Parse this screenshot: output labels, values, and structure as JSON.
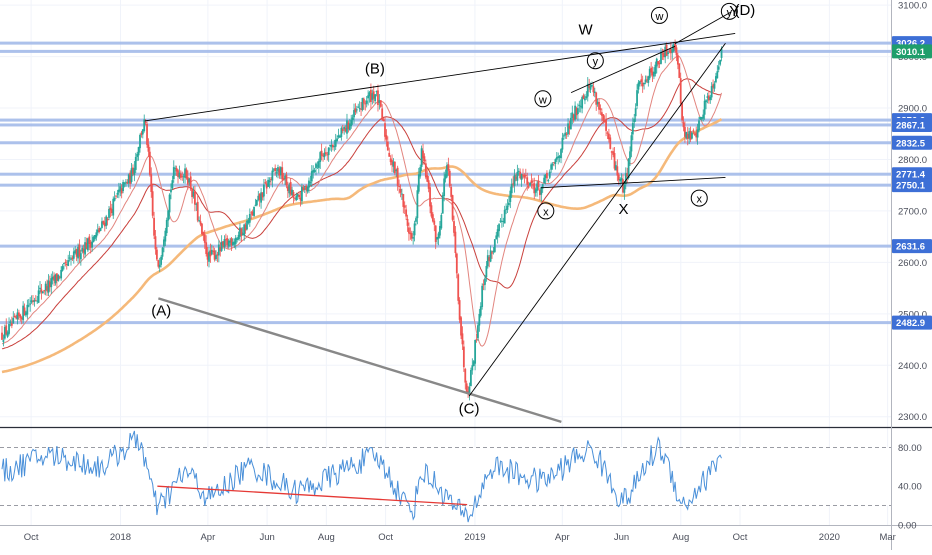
{
  "colors": {
    "up": "#26a69a",
    "down": "#ef5350",
    "level_line": "#9db6e8",
    "label_blue": "#3d6fd6",
    "label_green": "#1f9e6b",
    "ma_short": "#e2857f",
    "ma_mid": "#c9403c",
    "ma_long": "#f5b97a",
    "rsi_line": "#4a90d9",
    "trend": "#000000",
    "channel": "#888888",
    "rsi_divergence": "#e53935"
  },
  "price_axis": {
    "min": 2280,
    "max": 3110,
    "ticks": [
      {
        "value": 2300,
        "label": "2300.0"
      },
      {
        "value": 2400,
        "label": "2400.0"
      },
      {
        "value": 2500,
        "label": "2500.0"
      },
      {
        "value": 2600,
        "label": "2600.0"
      },
      {
        "value": 2700,
        "label": "2700.0"
      },
      {
        "value": 2800,
        "label": "2800.0"
      },
      {
        "value": 2900,
        "label": "2900.0"
      },
      {
        "value": 3000,
        "label": "3000.0"
      },
      {
        "value": 3100,
        "label": "3100.0"
      }
    ]
  },
  "rsi_axis": {
    "min": 0,
    "max": 100,
    "ticks": [
      {
        "value": 80,
        "label": "80.00"
      },
      {
        "value": 40,
        "label": "40.00"
      },
      {
        "value": 0,
        "label": "0.00"
      }
    ],
    "bands": [
      80,
      20
    ]
  },
  "time_axis": {
    "start": "2017-09-01",
    "end": "2020-03-31",
    "ticks": [
      {
        "date": "2017-10-01",
        "label": "Oct"
      },
      {
        "date": "2018-01-01",
        "label": "2018"
      },
      {
        "date": "2018-04-01",
        "label": "Apr"
      },
      {
        "date": "2018-06-01",
        "label": "Jun"
      },
      {
        "date": "2018-08-01",
        "label": "Aug"
      },
      {
        "date": "2018-10-01",
        "label": "Oct"
      },
      {
        "date": "2019-01-01",
        "label": "2019"
      },
      {
        "date": "2019-04-01",
        "label": "Apr"
      },
      {
        "date": "2019-06-01",
        "label": "Jun"
      },
      {
        "date": "2019-08-01",
        "label": "Aug"
      },
      {
        "date": "2019-10-01",
        "label": "Oct"
      },
      {
        "date": "2020-01-01",
        "label": "2020"
      },
      {
        "date": "2020-03-01",
        "label": "Mar"
      }
    ]
  },
  "chart_data": {
    "type": "candlestick",
    "price_keypoints": [
      {
        "date": "2017-09-01",
        "close": 2460
      },
      {
        "date": "2017-10-15",
        "close": 2550
      },
      {
        "date": "2017-12-01",
        "close": 2640
      },
      {
        "date": "2018-01-10",
        "close": 2760
      },
      {
        "date": "2018-01-26",
        "close": 2873
      },
      {
        "date": "2018-02-08",
        "close": 2590
      },
      {
        "date": "2018-02-26",
        "close": 2780
      },
      {
        "date": "2018-03-10",
        "close": 2770
      },
      {
        "date": "2018-04-02",
        "close": 2610
      },
      {
        "date": "2018-05-01",
        "close": 2650
      },
      {
        "date": "2018-06-12",
        "close": 2780
      },
      {
        "date": "2018-07-01",
        "close": 2720
      },
      {
        "date": "2018-08-01",
        "close": 2820
      },
      {
        "date": "2018-09-20",
        "close": 2930
      },
      {
        "date": "2018-10-10",
        "close": 2780
      },
      {
        "date": "2018-10-29",
        "close": 2640
      },
      {
        "date": "2018-11-07",
        "close": 2810
      },
      {
        "date": "2018-11-23",
        "close": 2640
      },
      {
        "date": "2018-12-03",
        "close": 2790
      },
      {
        "date": "2018-12-24",
        "close": 2351
      },
      {
        "date": "2019-01-15",
        "close": 2610
      },
      {
        "date": "2019-02-15",
        "close": 2775
      },
      {
        "date": "2019-03-08",
        "close": 2740
      },
      {
        "date": "2019-04-30",
        "close": 2945
      },
      {
        "date": "2019-06-03",
        "close": 2744
      },
      {
        "date": "2019-06-20",
        "close": 2950
      },
      {
        "date": "2019-07-26",
        "close": 3025
      },
      {
        "date": "2019-08-05",
        "close": 2845
      },
      {
        "date": "2019-08-15",
        "close": 2847
      },
      {
        "date": "2019-08-30",
        "close": 2926
      },
      {
        "date": "2019-09-13",
        "close": 3010
      }
    ],
    "horizontal_levels": [
      {
        "value": 3026.2,
        "label": "3026.2",
        "color": "#3d6fd6"
      },
      {
        "value": 3010.1,
        "label": "3010.1",
        "color": "#1f9e6b"
      },
      {
        "value": 2876.6,
        "label": "2876.6",
        "color": "#3d6fd6"
      },
      {
        "value": 2867.1,
        "label": "2867.1",
        "color": "#3d6fd6"
      },
      {
        "value": 2832.5,
        "label": "2832.5",
        "color": "#3d6fd6"
      },
      {
        "value": 2771.4,
        "label": "2771.4",
        "color": "#3d6fd6"
      },
      {
        "value": 2750.1,
        "label": "2750.1",
        "color": "#3d6fd6"
      },
      {
        "value": 2631.6,
        "label": "2631.6",
        "color": "#3d6fd6"
      },
      {
        "value": 2482.9,
        "label": "2482.9",
        "color": "#3d6fd6"
      }
    ],
    "trendlines": [
      {
        "from": {
          "date": "2018-01-26",
          "price": 2875
        },
        "to": {
          "date": "2019-09-26",
          "price": 3045
        }
      },
      {
        "from": {
          "date": "2018-02-09",
          "price": 2530
        },
        "to": {
          "date": "2019-03-31",
          "price": 2290
        }
      },
      {
        "from": {
          "date": "2018-12-26",
          "price": 2340
        },
        "to": {
          "date": "2019-09-16",
          "price": 3026
        }
      },
      {
        "from": {
          "date": "2019-03-10",
          "price": 2745
        },
        "to": {
          "date": "2019-09-16",
          "price": 2765
        }
      },
      {
        "from": {
          "date": "2019-04-10",
          "price": 2930
        },
        "to": {
          "date": "2019-07-26",
          "price": 3020
        }
      },
      {
        "from": {
          "date": "2019-07-26",
          "price": 3025
        },
        "to": {
          "date": "2019-09-22",
          "price": 3087
        }
      }
    ],
    "wave_labels": [
      {
        "text": "(A)",
        "date": "2018-02-12",
        "price": 2505,
        "circled": false
      },
      {
        "text": "(B)",
        "date": "2018-09-20",
        "price": 2976,
        "circled": false
      },
      {
        "text": "(C)",
        "date": "2018-12-26",
        "price": 2315,
        "circled": false
      },
      {
        "text": "W",
        "date": "2019-04-25",
        "price": 3052,
        "circled": false
      },
      {
        "text": "X",
        "date": "2019-06-03",
        "price": 2703,
        "circled": false
      },
      {
        "text": "Y",
        "date": "2019-09-25",
        "price": 3088,
        "circled": false
      },
      {
        "text": "(D)",
        "date": "2019-10-06",
        "price": 3090,
        "circled": false
      },
      {
        "text": "w",
        "date": "2019-03-12",
        "price": 2918,
        "circled": true
      },
      {
        "text": "x",
        "date": "2019-03-15",
        "price": 2700,
        "circled": true
      },
      {
        "text": "y",
        "date": "2019-05-05",
        "price": 2992,
        "circled": true
      },
      {
        "text": "w",
        "date": "2019-07-10",
        "price": 3080,
        "circled": true
      },
      {
        "text": "x",
        "date": "2019-08-20",
        "price": 2725,
        "circled": true
      },
      {
        "text": "y",
        "date": "2019-09-20",
        "price": 3088,
        "circled": true
      }
    ],
    "rsi_keypoints": [
      {
        "date": "2017-09-01",
        "value": 55
      },
      {
        "date": "2017-10-20",
        "value": 72
      },
      {
        "date": "2017-12-10",
        "value": 60
      },
      {
        "date": "2018-01-20",
        "value": 88
      },
      {
        "date": "2018-02-08",
        "value": 18
      },
      {
        "date": "2018-03-10",
        "value": 55
      },
      {
        "date": "2018-04-02",
        "value": 28
      },
      {
        "date": "2018-05-15",
        "value": 60
      },
      {
        "date": "2018-07-01",
        "value": 35
      },
      {
        "date": "2018-09-20",
        "value": 70
      },
      {
        "date": "2018-10-29",
        "value": 15
      },
      {
        "date": "2018-11-07",
        "value": 55
      },
      {
        "date": "2018-12-24",
        "value": 8
      },
      {
        "date": "2019-01-20",
        "value": 60
      },
      {
        "date": "2019-03-10",
        "value": 45
      },
      {
        "date": "2019-04-30",
        "value": 78
      },
      {
        "date": "2019-06-03",
        "value": 25
      },
      {
        "date": "2019-07-10",
        "value": 80
      },
      {
        "date": "2019-08-05",
        "value": 20
      },
      {
        "date": "2019-08-25",
        "value": 45
      },
      {
        "date": "2019-09-13",
        "value": 75
      }
    ],
    "rsi_divergence": {
      "from": {
        "date": "2018-02-08",
        "value": 40
      },
      "to": {
        "date": "2018-12-24",
        "value": 21
      }
    }
  }
}
